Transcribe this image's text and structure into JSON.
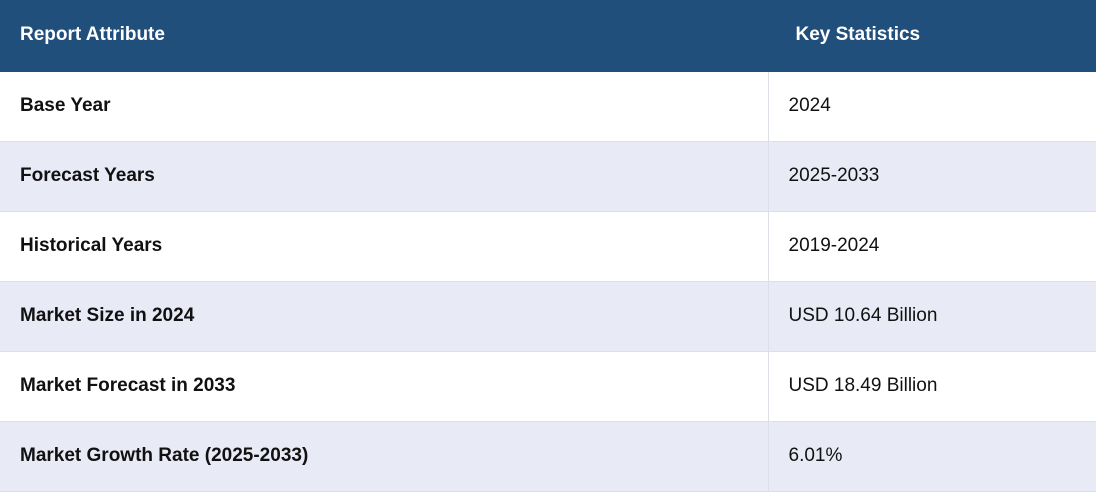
{
  "table": {
    "header": [
      "Report Attribute",
      "Key Statistics"
    ],
    "rows": [
      [
        "Base Year",
        "2024"
      ],
      [
        "Forecast Years",
        "2025-2033"
      ],
      [
        "Historical Years",
        "2019-2024"
      ],
      [
        "Market Size in 2024",
        "USD 10.64 Billion"
      ],
      [
        "Market Forecast in 2033",
        "USD 18.49 Billion"
      ],
      [
        "Market Growth Rate (2025-2033)",
        "6.01%"
      ]
    ]
  }
}
